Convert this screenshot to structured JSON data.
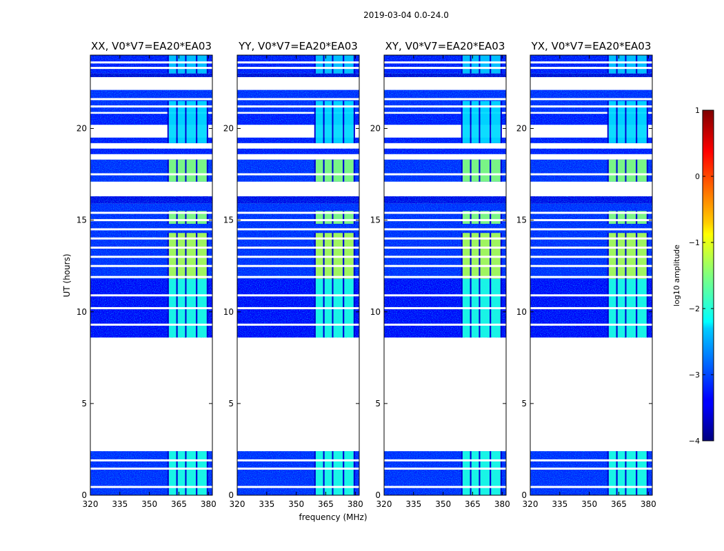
{
  "chart_data": {
    "type": "heatmap",
    "suptitle": "2019-03-04 0.0-24.0",
    "xlabel": "frequency (MHz)",
    "ylabel": "UT (hours)",
    "xlim": [
      320,
      382
    ],
    "ylim": [
      0,
      24
    ],
    "xticks": [
      320,
      335,
      350,
      365,
      380
    ],
    "yticks": [
      0,
      5,
      10,
      15,
      20
    ],
    "rfi_band_mhz": [
      359.5,
      379.5
    ],
    "rfi_band_edges_mhz": [
      359.5,
      364.0,
      368.5,
      374.0,
      379.5
    ],
    "panels": [
      {
        "title": "XX, V0*V7=EA20*EA03"
      },
      {
        "title": "YY, V0*V7=EA20*EA03"
      },
      {
        "title": "XY, V0*V7=EA20*EA03"
      },
      {
        "title": "YX, V0*V7=EA20*EA03"
      }
    ],
    "data_segments_ut": [
      {
        "start": 0.0,
        "end": 2.4,
        "level": -3.2
      },
      {
        "start": 8.6,
        "end": 11.8,
        "level": -3.4
      },
      {
        "start": 11.8,
        "end": 15.9,
        "level": -3.2
      },
      {
        "start": 15.9,
        "end": 16.3,
        "level": -3.5
      },
      {
        "start": 17.1,
        "end": 18.3,
        "level": -3.2
      },
      {
        "start": 18.6,
        "end": 18.9,
        "level": -3.3
      },
      {
        "start": 19.2,
        "end": 19.5,
        "level": -3.3
      },
      {
        "start": 20.2,
        "end": 20.8,
        "level": -3.3
      },
      {
        "start": 20.9,
        "end": 22.1,
        "level": -3.2
      },
      {
        "start": 22.8,
        "end": 23.0,
        "level": -3.6
      },
      {
        "start": 23.0,
        "end": 24.0,
        "level": -3.3
      }
    ],
    "flagged_rows_ut": [
      0.45,
      1.45,
      1.9,
      9.3,
      10.2,
      10.9,
      11.9,
      12.5,
      13.0,
      13.5,
      14.0,
      14.5,
      15.0,
      15.4,
      17.5,
      21.2,
      21.6,
      23.3,
      23.6
    ],
    "rfi_segments_ut": [
      {
        "start": 0.0,
        "end": 2.4,
        "level": -2.0
      },
      {
        "start": 8.6,
        "end": 11.8,
        "level": -2.0
      },
      {
        "start": 11.8,
        "end": 14.3,
        "level": -1.3
      },
      {
        "start": 14.8,
        "end": 15.5,
        "level": -1.5
      },
      {
        "start": 17.1,
        "end": 18.3,
        "level": -1.5
      },
      {
        "start": 19.2,
        "end": 21.5,
        "level": -2.3
      },
      {
        "start": 23.0,
        "end": 24.0,
        "level": -2.4
      }
    ],
    "colorbar": {
      "label": "log10 amplitude",
      "range": [
        -4,
        1
      ],
      "ticks": [
        1,
        0,
        -1,
        -2,
        -3,
        -4
      ],
      "tick_labels": [
        "1",
        "0",
        "−1",
        "−2",
        "−3",
        "−4"
      ]
    }
  },
  "colors": {
    "axis": "#000000",
    "background": "#ffffff"
  }
}
